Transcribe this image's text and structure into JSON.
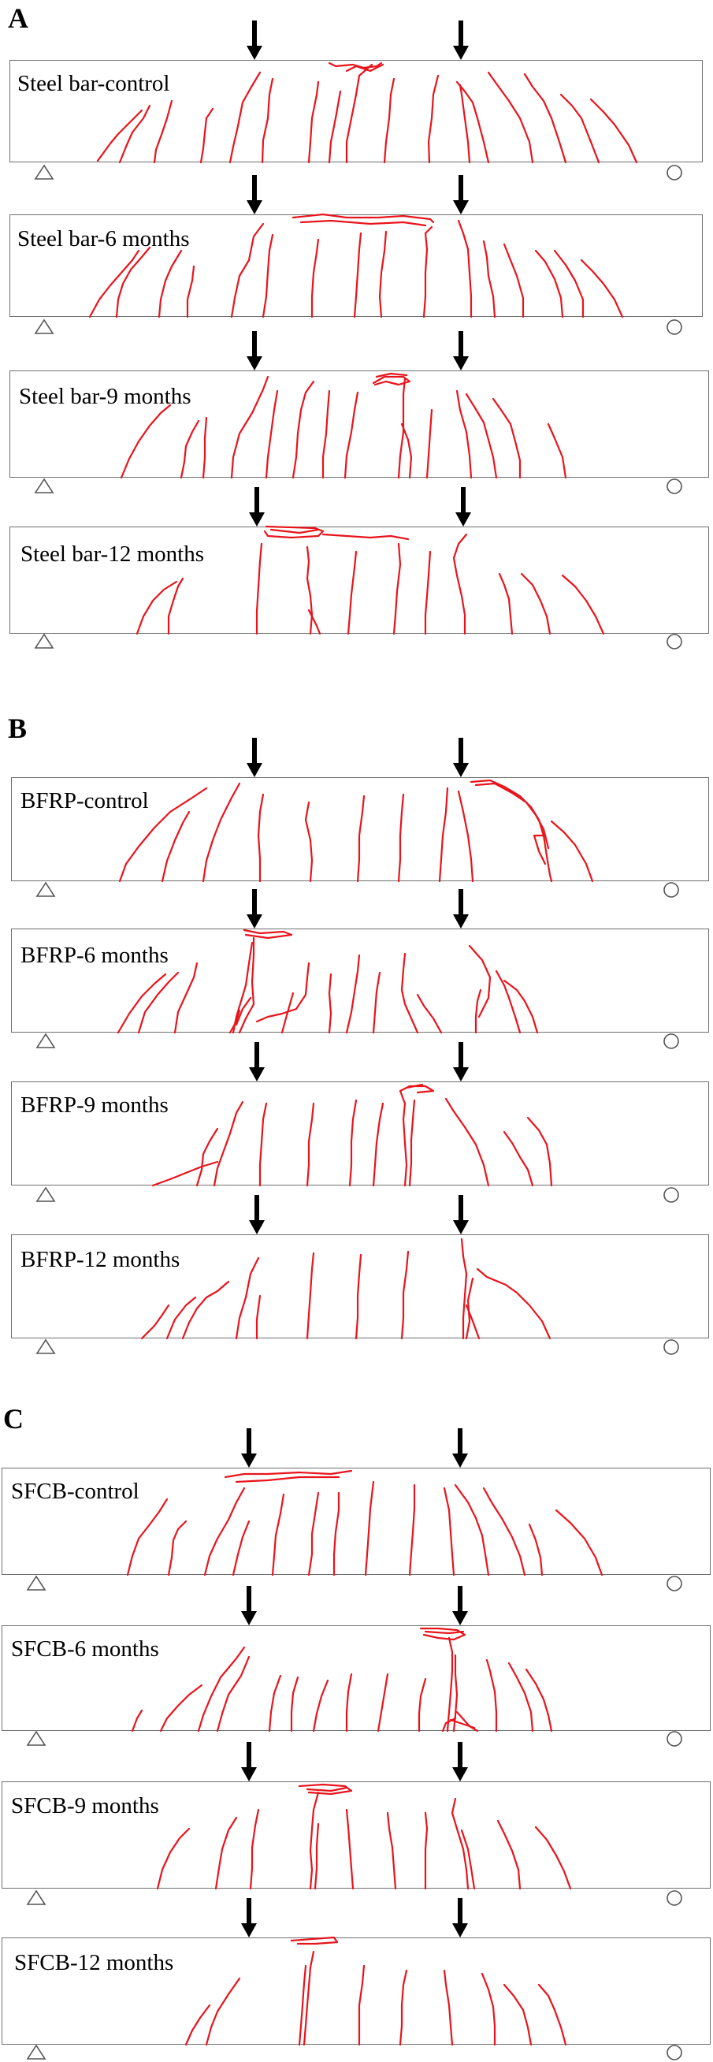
{
  "panels": [
    {
      "letter": "A",
      "beams": [
        {
          "label": "Steel bar-control"
        },
        {
          "label": "Steel bar-6 months"
        },
        {
          "label": "Steel bar-9 months"
        },
        {
          "label": "Steel bar-12 months"
        }
      ]
    },
    {
      "letter": "B",
      "beams": [
        {
          "label": "BFRP-control"
        },
        {
          "label": "BFRP-6 months"
        },
        {
          "label": "BFRP-9 months"
        },
        {
          "label": "BFRP-12 months"
        }
      ]
    },
    {
      "letter": "C",
      "beams": [
        {
          "label": "SFCB-control"
        },
        {
          "label": "SFCB-6 months"
        },
        {
          "label": "SFCB-9 months"
        },
        {
          "label": "SFCB-12 months"
        }
      ]
    }
  ],
  "colors": {
    "crack": "#e8141c",
    "beam_outline": "#6e6e6e",
    "arrow": "#000000",
    "support": "#555555"
  },
  "icons": {
    "load_arrow": "down-arrow-icon",
    "pin_support": "triangle-support-icon",
    "roller_support": "circle-support-icon"
  }
}
